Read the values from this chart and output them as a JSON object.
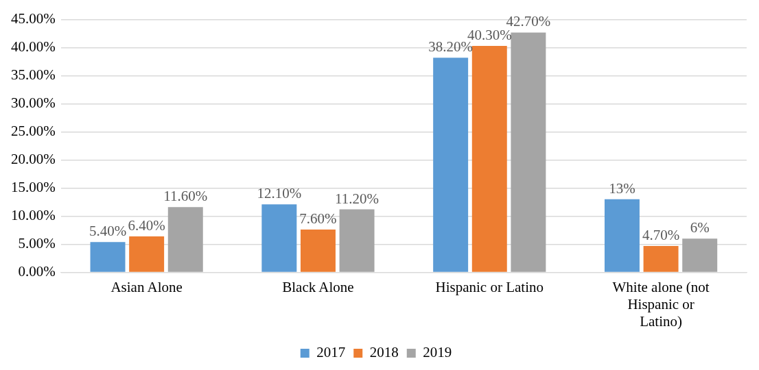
{
  "chart_data": {
    "type": "bar",
    "categories": [
      "Asian Alone",
      "Black Alone",
      "Hispanic or Latino",
      "White alone (not Hispanic or Latino)"
    ],
    "series": [
      {
        "name": "2017",
        "color": "#5b9bd5",
        "values": [
          5.4,
          12.1,
          38.2,
          13
        ],
        "value_labels": [
          "5.40%",
          "12.10%",
          "38.20%",
          "13%"
        ]
      },
      {
        "name": "2018",
        "color": "#ed7d31",
        "values": [
          6.4,
          7.6,
          40.3,
          4.7
        ],
        "value_labels": [
          "6.40%",
          "7.60%",
          "40.30%",
          "4.70%"
        ]
      },
      {
        "name": "2019",
        "color": "#a5a5a5",
        "values": [
          11.6,
          11.2,
          42.7,
          6
        ],
        "value_labels": [
          "11.60%",
          "11.20%",
          "42.70%",
          "6%"
        ]
      }
    ],
    "ylim": [
      0,
      45
    ],
    "yticks": [
      {
        "value": 0,
        "label": "0.00%"
      },
      {
        "value": 5,
        "label": "5.00%"
      },
      {
        "value": 10,
        "label": "10.00%"
      },
      {
        "value": 15,
        "label": "15.00%"
      },
      {
        "value": 20,
        "label": "20.00%"
      },
      {
        "value": 25,
        "label": "25.00%"
      },
      {
        "value": 30,
        "label": "30.00%"
      },
      {
        "value": 35,
        "label": "35.00%"
      },
      {
        "value": 40,
        "label": "40.00%"
      },
      {
        "value": 45,
        "label": "45.00%"
      }
    ],
    "grid": "y",
    "legend": "bottom"
  }
}
